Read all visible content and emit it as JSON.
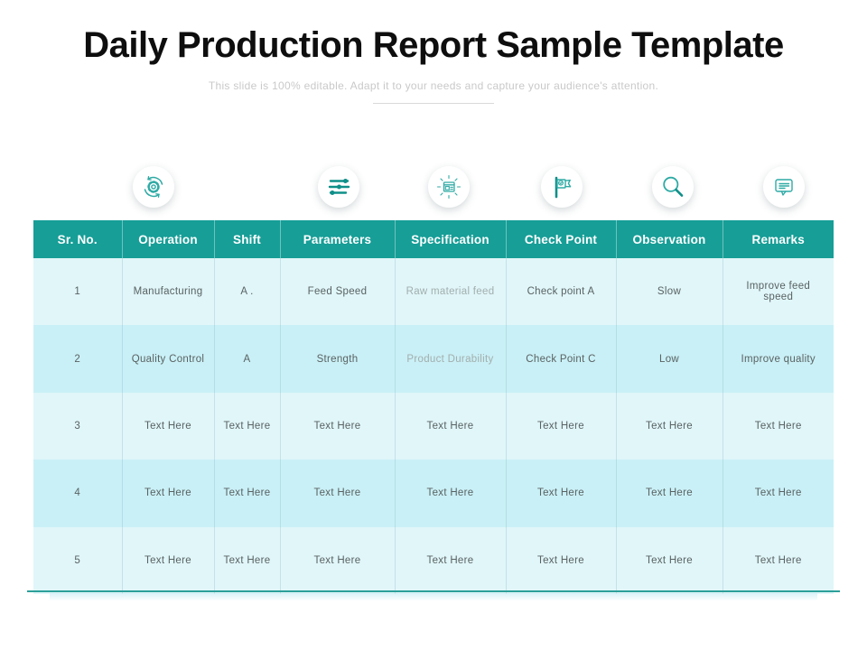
{
  "slide": {
    "title": "Daily Production Report Sample Template",
    "subtitle": "This slide is 100% editable. Adapt it to your needs and capture your audience's attention."
  },
  "icons": [
    {
      "name": "gear-sync-icon",
      "represents": "operation"
    },
    {
      "name": "sliders-icon",
      "represents": "parameters"
    },
    {
      "name": "shining-window-icon",
      "represents": "specification"
    },
    {
      "name": "flag-checkpoint-icon",
      "represents": "check point"
    },
    {
      "name": "magnifier-icon",
      "represents": "observation"
    },
    {
      "name": "comment-icon",
      "represents": "remarks"
    }
  ],
  "colors": {
    "header_teal": "#169e97",
    "row_light": "#e0f6f9",
    "row_dark": "#c9f0f6",
    "icon_teal": "#2faaa5",
    "icon_dark": "#0f8f89",
    "bottom_rule": "#2b9f99",
    "body_text": "#5a6263",
    "muted_text": "#a3aeae"
  },
  "table": {
    "headers": [
      "Sr. No.",
      "Operation",
      "Shift",
      "Parameters",
      "Specification",
      "Check Point",
      "Observation",
      "Remarks"
    ],
    "rows": [
      [
        "1",
        "Manufacturing",
        "A .",
        "Feed Speed",
        "Raw material feed",
        "Check point A",
        "Slow",
        "Improve feed speed"
      ],
      [
        "2",
        "Quality Control",
        "A",
        "Strength",
        "Product Durability",
        "Check Point C",
        "Low",
        "Improve quality"
      ],
      [
        "3",
        "Text Here",
        "Text Here",
        "Text Here",
        "Text Here",
        "Text Here",
        "Text Here",
        "Text Here"
      ],
      [
        "4",
        "Text Here",
        "Text Here",
        "Text Here",
        "Text Here",
        "Text Here",
        "Text Here",
        "Text Here"
      ],
      [
        "5",
        "Text Here",
        "Text Here",
        "Text Here",
        "Text Here",
        "Text Here",
        "Text Here",
        "Text Here"
      ]
    ],
    "muted_cells": [
      [
        0,
        4
      ],
      [
        1,
        4
      ]
    ]
  }
}
